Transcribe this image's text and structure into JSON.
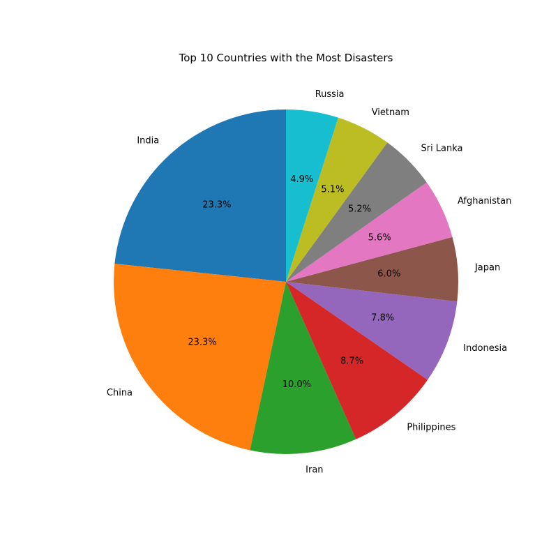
{
  "chart_data": {
    "type": "pie",
    "title": "Top 10 Countries with the Most Disasters",
    "start_angle_deg": 90,
    "direction": "counterclockwise",
    "slices": [
      {
        "label": "India",
        "value": 23.3,
        "pct_label": "23.3%",
        "color": "#1f77b4"
      },
      {
        "label": "China",
        "value": 23.3,
        "pct_label": "23.3%",
        "color": "#ff7f0e"
      },
      {
        "label": "Iran",
        "value": 10.0,
        "pct_label": "10.0%",
        "color": "#2ca02c"
      },
      {
        "label": "Philippines",
        "value": 8.7,
        "pct_label": "8.7%",
        "color": "#d62728"
      },
      {
        "label": "Indonesia",
        "value": 7.8,
        "pct_label": "7.8%",
        "color": "#9467bd"
      },
      {
        "label": "Japan",
        "value": 6.0,
        "pct_label": "6.0%",
        "color": "#8c564b"
      },
      {
        "label": "Afghanistan",
        "value": 5.6,
        "pct_label": "5.6%",
        "color": "#e377c2"
      },
      {
        "label": "Sri Lanka",
        "value": 5.2,
        "pct_label": "5.2%",
        "color": "#7f7f7f"
      },
      {
        "label": "Vietnam",
        "value": 5.1,
        "pct_label": "5.1%",
        "color": "#bcbd22"
      },
      {
        "label": "Russia",
        "value": 4.9,
        "pct_label": "4.9%",
        "color": "#17becf"
      }
    ]
  }
}
